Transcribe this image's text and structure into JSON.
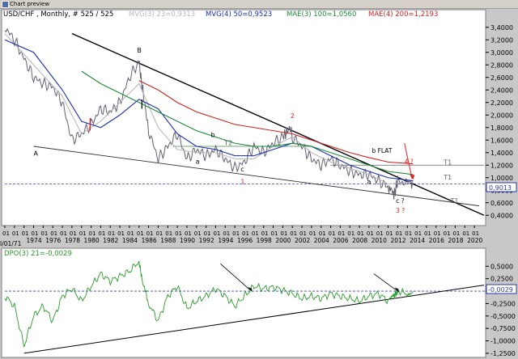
{
  "window": {
    "title": "Chart preview"
  },
  "main_header": {
    "symbol": "USD/CHF , Monthly, # 525 / 525",
    "items": [
      {
        "text": "MVG(3) 23=0,9313",
        "color": "#b8b8b8"
      },
      {
        "text": "MVG(4) 50=0,9523",
        "color": "#1a2cb0"
      },
      {
        "text": "MAE(3) 100=1,0560",
        "color": "#1a8a3a"
      },
      {
        "text": "MAE(4) 200=1,2193",
        "color": "#d02020"
      }
    ]
  },
  "dpo_header": {
    "text": "DPO(3) 21=-0,0029",
    "color": "#2a9a2a"
  },
  "y_ticks_main": [
    "3,4000",
    "3,2000",
    "3,0000",
    "2,8000",
    "2,6000",
    "2,4000",
    "2,2000",
    "2,0000",
    "1,8000",
    "1,6000",
    "1,4000",
    "1,2000",
    "1,0000",
    "0,8000",
    "0,6000",
    "0,4000"
  ],
  "y_ticks_dpo": [
    "0,5000",
    "0,2500",
    "0,0000",
    "-0,2500",
    "-0,5000",
    "-0,7500",
    "-1,0000",
    "-1,2500"
  ],
  "price_badge": "0,9013",
  "dpo_badge": "-0,0029",
  "x_start_label": "I/01/71",
  "year_labels": [
    "1974",
    "1976",
    "1978",
    "1980",
    "1982",
    "1984",
    "1986",
    "1988",
    "1990",
    "1992",
    "1994",
    "1996",
    "1998",
    "2000",
    "2002",
    "2004",
    "2006",
    "2008",
    "2010",
    "2012",
    "2014",
    "2016",
    "2018",
    "2020"
  ],
  "month_tick_label": "01",
  "annotations": [
    {
      "text": "A",
      "color": "#000000"
    },
    {
      "text": "B",
      "color": "#000000"
    },
    {
      "text": "b",
      "color": "#000000"
    },
    {
      "text": "a",
      "color": "#000000"
    },
    {
      "text": "c",
      "color": "#000000"
    },
    {
      "text": "1",
      "color": "#e02020"
    },
    {
      "text": "2",
      "color": "#e02020"
    },
    {
      "text": "T2",
      "color": "#606060"
    },
    {
      "text": "b FLAT",
      "color": "#000000"
    },
    {
      "text": "4 ?",
      "color": "#e02020"
    },
    {
      "text": "a",
      "color": "#000000"
    },
    {
      "text": "c ?",
      "color": "#000000"
    },
    {
      "text": "3 ?",
      "color": "#e02020"
    },
    {
      "text": "T1",
      "color": "#606060"
    },
    {
      "text": "T1",
      "color": "#606060"
    },
    {
      "text": "T1",
      "color": "#606060"
    }
  ],
  "chart_data": [
    {
      "type": "line",
      "title": "USD/CHF , Monthly",
      "ylim": [
        0.3,
        3.5
      ],
      "x_range": [
        1971,
        2021
      ],
      "series": [
        {
          "name": "USD/CHF",
          "color": "#606070",
          "x": [
            1971,
            1972,
            1973,
            1974,
            1975,
            1976,
            1977,
            1978,
            1979,
            1980,
            1981,
            1982,
            1983,
            1984,
            1985,
            1985.2,
            1986,
            1987,
            1988,
            1989,
            1990,
            1991,
            1992,
            1993,
            1994,
            1995,
            1996,
            1997,
            1998,
            1999,
            2000,
            2000.8,
            2001,
            2002,
            2003,
            2004,
            2005,
            2006,
            2007,
            2008,
            2009,
            2010,
            2011,
            2011.6,
            2012,
            2013,
            2013.6
          ],
          "y": [
            3.4,
            3.2,
            2.9,
            2.6,
            2.5,
            2.45,
            2.2,
            1.6,
            1.7,
            1.85,
            2.1,
            2.05,
            2.2,
            2.6,
            2.85,
            2.6,
            1.75,
            1.3,
            1.5,
            1.7,
            1.3,
            1.45,
            1.35,
            1.45,
            1.3,
            1.15,
            1.25,
            1.5,
            1.4,
            1.55,
            1.65,
            1.8,
            1.65,
            1.5,
            1.3,
            1.2,
            1.3,
            1.2,
            1.1,
            1.05,
            1.05,
            0.95,
            0.85,
            0.72,
            0.95,
            0.9,
            0.9
          ]
        },
        {
          "name": "MVG(3) 23",
          "color": "#b8b8b8",
          "x": [
            1971,
            1974,
            1977,
            1979,
            1981,
            1983,
            1985,
            1987,
            1989,
            1991,
            1993,
            1995,
            1997,
            1999,
            2001,
            2003,
            2005,
            2007,
            2009,
            2011,
            2013.6
          ],
          "y": [
            3.3,
            2.8,
            2.3,
            1.7,
            1.9,
            2.2,
            2.5,
            1.8,
            1.45,
            1.4,
            1.4,
            1.3,
            1.3,
            1.5,
            1.65,
            1.4,
            1.25,
            1.15,
            1.05,
            0.9,
            0.93
          ]
        },
        {
          "name": "MVG(4) 50",
          "color": "#1a2cb0",
          "x": [
            1971,
            1974,
            1977,
            1979,
            1981,
            1983,
            1985,
            1987,
            1989,
            1991,
            1993,
            1995,
            1997,
            1999,
            2001,
            2003,
            2005,
            2007,
            2009,
            2011,
            2013.6
          ],
          "y": [
            3.2,
            3.0,
            2.4,
            1.9,
            1.8,
            2.0,
            2.25,
            2.1,
            1.7,
            1.5,
            1.45,
            1.35,
            1.35,
            1.45,
            1.55,
            1.5,
            1.35,
            1.2,
            1.1,
            1.0,
            0.95
          ]
        },
        {
          "name": "MAE(3) 100",
          "color": "#1a8a3a",
          "x": [
            1979,
            1981,
            1983,
            1985,
            1987,
            1989,
            1991,
            1993,
            1995,
            1997,
            1999,
            2001,
            2003,
            2005,
            2007,
            2009,
            2011,
            2013.6
          ],
          "y": [
            2.7,
            2.5,
            2.35,
            2.2,
            2.05,
            1.9,
            1.75,
            1.65,
            1.55,
            1.5,
            1.5,
            1.55,
            1.5,
            1.4,
            1.3,
            1.2,
            1.1,
            1.05
          ]
        },
        {
          "name": "MAE(4) 200",
          "color": "#d02020",
          "x": [
            1985,
            1987,
            1989,
            1991,
            1993,
            1995,
            1997,
            1999,
            2001,
            2003,
            2005,
            2007,
            2009,
            2011,
            2013.6
          ],
          "y": [
            2.55,
            2.4,
            2.2,
            2.05,
            1.95,
            1.85,
            1.8,
            1.75,
            1.7,
            1.6,
            1.5,
            1.4,
            1.32,
            1.25,
            1.22
          ]
        }
      ]
    },
    {
      "type": "line",
      "title": "DPO(3) 21",
      "ylim": [
        -1.3,
        0.7
      ],
      "x_range": [
        1971,
        2021
      ],
      "series": [
        {
          "name": "DPO(3) 21",
          "color": "#2a9a2a",
          "x": [
            1971,
            1972,
            1973,
            1974,
            1975,
            1976,
            1977,
            1978,
            1979,
            1980,
            1981,
            1982,
            1983,
            1984,
            1985,
            1985.3,
            1986,
            1987,
            1988,
            1989,
            1990,
            1991,
            1992,
            1993,
            1994,
            1995,
            1996,
            1997,
            1998,
            1999,
            2000,
            2001,
            2002,
            2003,
            2004,
            2005,
            2006,
            2007,
            2008,
            2009,
            2010,
            2011,
            2011.6,
            2012,
            2013,
            2013.6
          ],
          "y": [
            -0.1,
            -0.3,
            -1.1,
            -0.5,
            -0.3,
            -0.6,
            -0.1,
            0.05,
            -0.2,
            0.1,
            0.35,
            0.2,
            0.3,
            0.4,
            0.6,
            0.25,
            -0.25,
            -0.6,
            -0.1,
            0.1,
            -0.35,
            -0.2,
            -0.1,
            0.05,
            -0.1,
            -0.3,
            -0.1,
            0.1,
            0.05,
            0.08,
            0.02,
            -0.05,
            -0.15,
            -0.1,
            -0.15,
            -0.05,
            -0.1,
            -0.15,
            -0.2,
            -0.1,
            -0.05,
            -0.2,
            -0.1,
            0.0,
            -0.05,
            -0.003
          ]
        }
      ]
    }
  ]
}
